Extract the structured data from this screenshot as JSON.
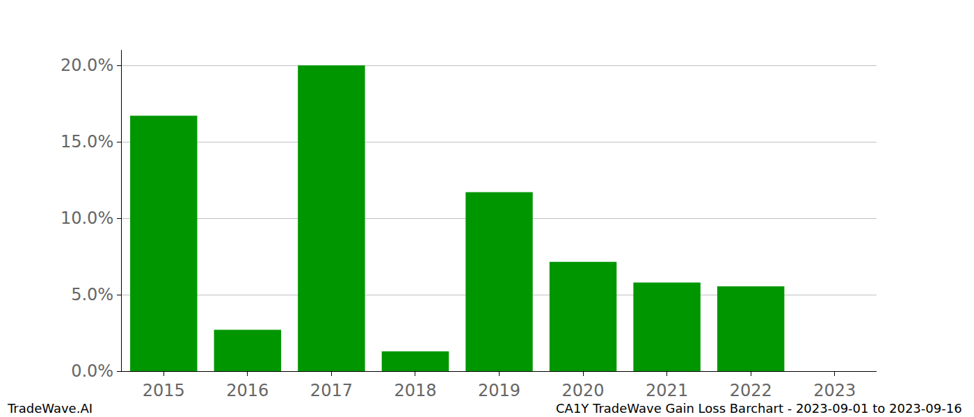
{
  "chart_data": {
    "type": "bar",
    "categories": [
      "2015",
      "2016",
      "2017",
      "2018",
      "2019",
      "2020",
      "2021",
      "2022",
      "2023"
    ],
    "values": [
      16.7,
      2.7,
      20.0,
      1.3,
      11.7,
      7.15,
      5.8,
      5.55,
      0
    ],
    "color": "#009600",
    "ylim": [
      0,
      21
    ],
    "yticks": [
      {
        "value": 0,
        "label": "0.0%"
      },
      {
        "value": 5,
        "label": "5.0%"
      },
      {
        "value": 10,
        "label": "10.0%"
      },
      {
        "value": 15,
        "label": "15.0%"
      },
      {
        "value": 20,
        "label": "20.0%"
      }
    ],
    "grid": true,
    "annotations": [
      "TradeWave.AI",
      "CA1Y TradeWave Gain Loss Barchart - 2023-09-01 to 2023-09-16"
    ]
  }
}
